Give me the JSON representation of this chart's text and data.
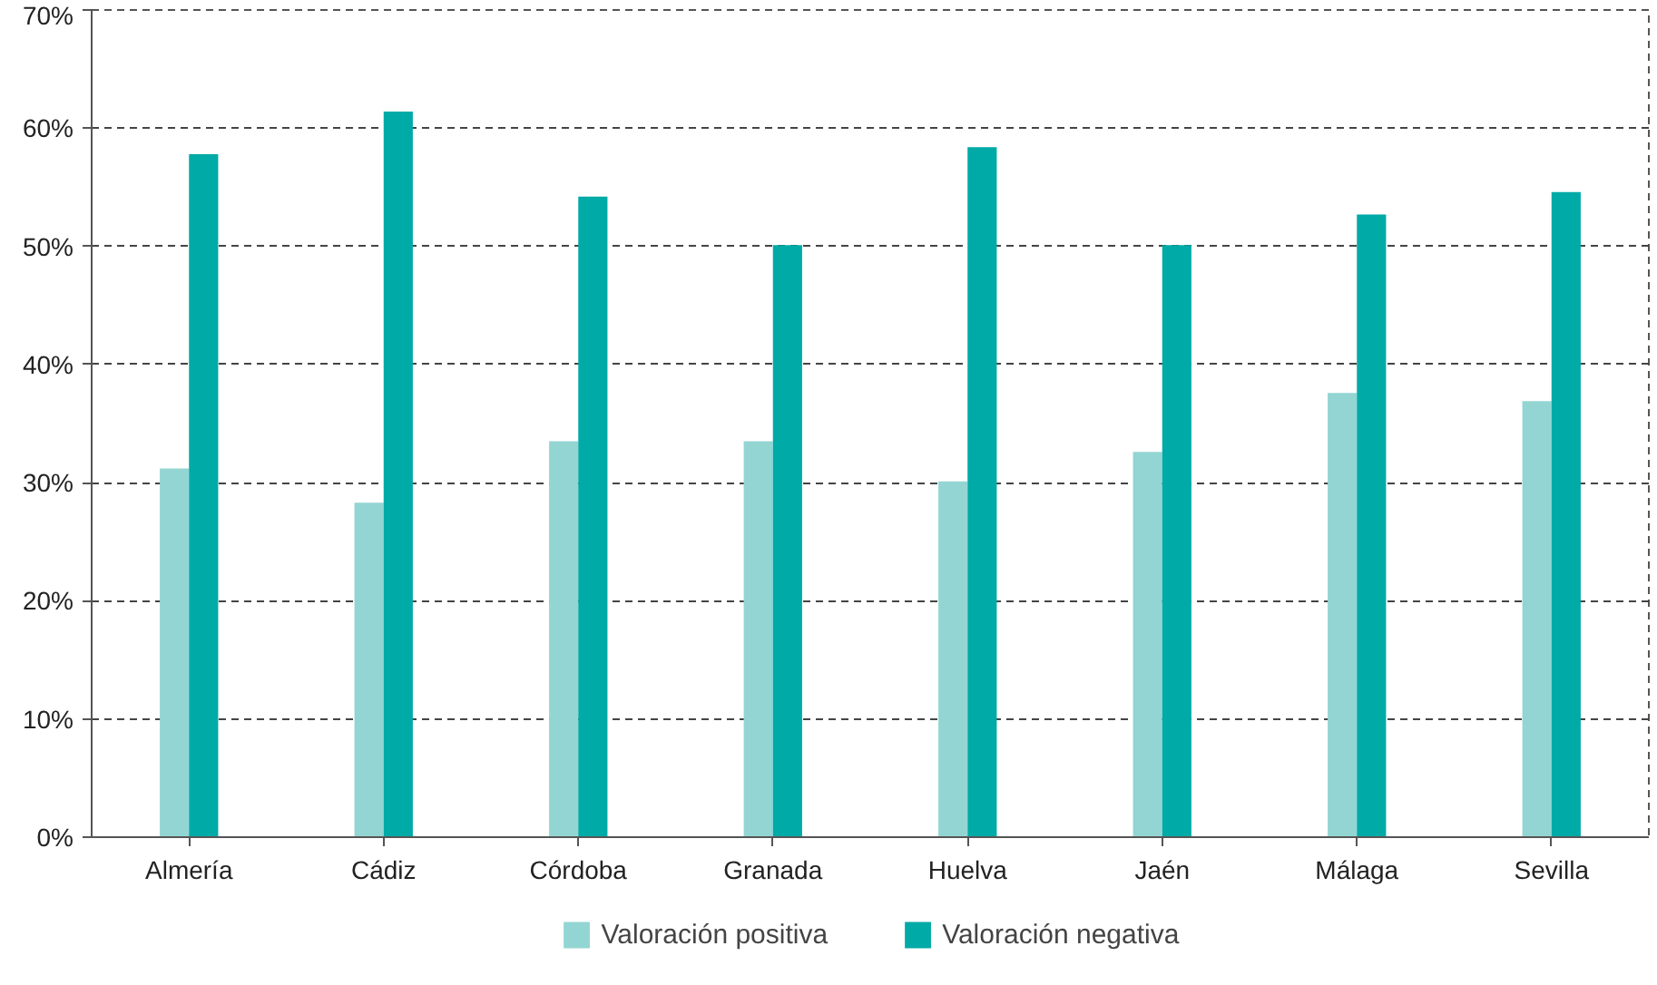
{
  "chart_data": {
    "type": "bar",
    "categories": [
      "Almería",
      "Cádiz",
      "Córdoba",
      "Granada",
      "Huelva",
      "Jaén",
      "Málaga",
      "Sevilla"
    ],
    "series": [
      {
        "name": "Valoración positiva",
        "color": "#93d5d3",
        "values": [
          31.2,
          28.3,
          33.5,
          33.5,
          30.1,
          32.6,
          37.6,
          36.9
        ]
      },
      {
        "name": "Valoración negativa",
        "color": "#00aaa6",
        "values": [
          57.8,
          61.4,
          54.2,
          50.1,
          58.4,
          50.1,
          52.7,
          54.6
        ]
      }
    ],
    "ylim": [
      0,
      70
    ],
    "yticks": [
      {
        "value": 0,
        "label": "0%"
      },
      {
        "value": 10,
        "label": "10%"
      },
      {
        "value": 20,
        "label": "20%"
      },
      {
        "value": 30,
        "label": "30%"
      },
      {
        "value": 40,
        "label": "40%"
      },
      {
        "value": 50,
        "label": "50%"
      },
      {
        "value": 60,
        "label": "60%"
      },
      {
        "value": 70,
        "label": "70%"
      }
    ],
    "grid": "y",
    "legend": "bottom"
  }
}
